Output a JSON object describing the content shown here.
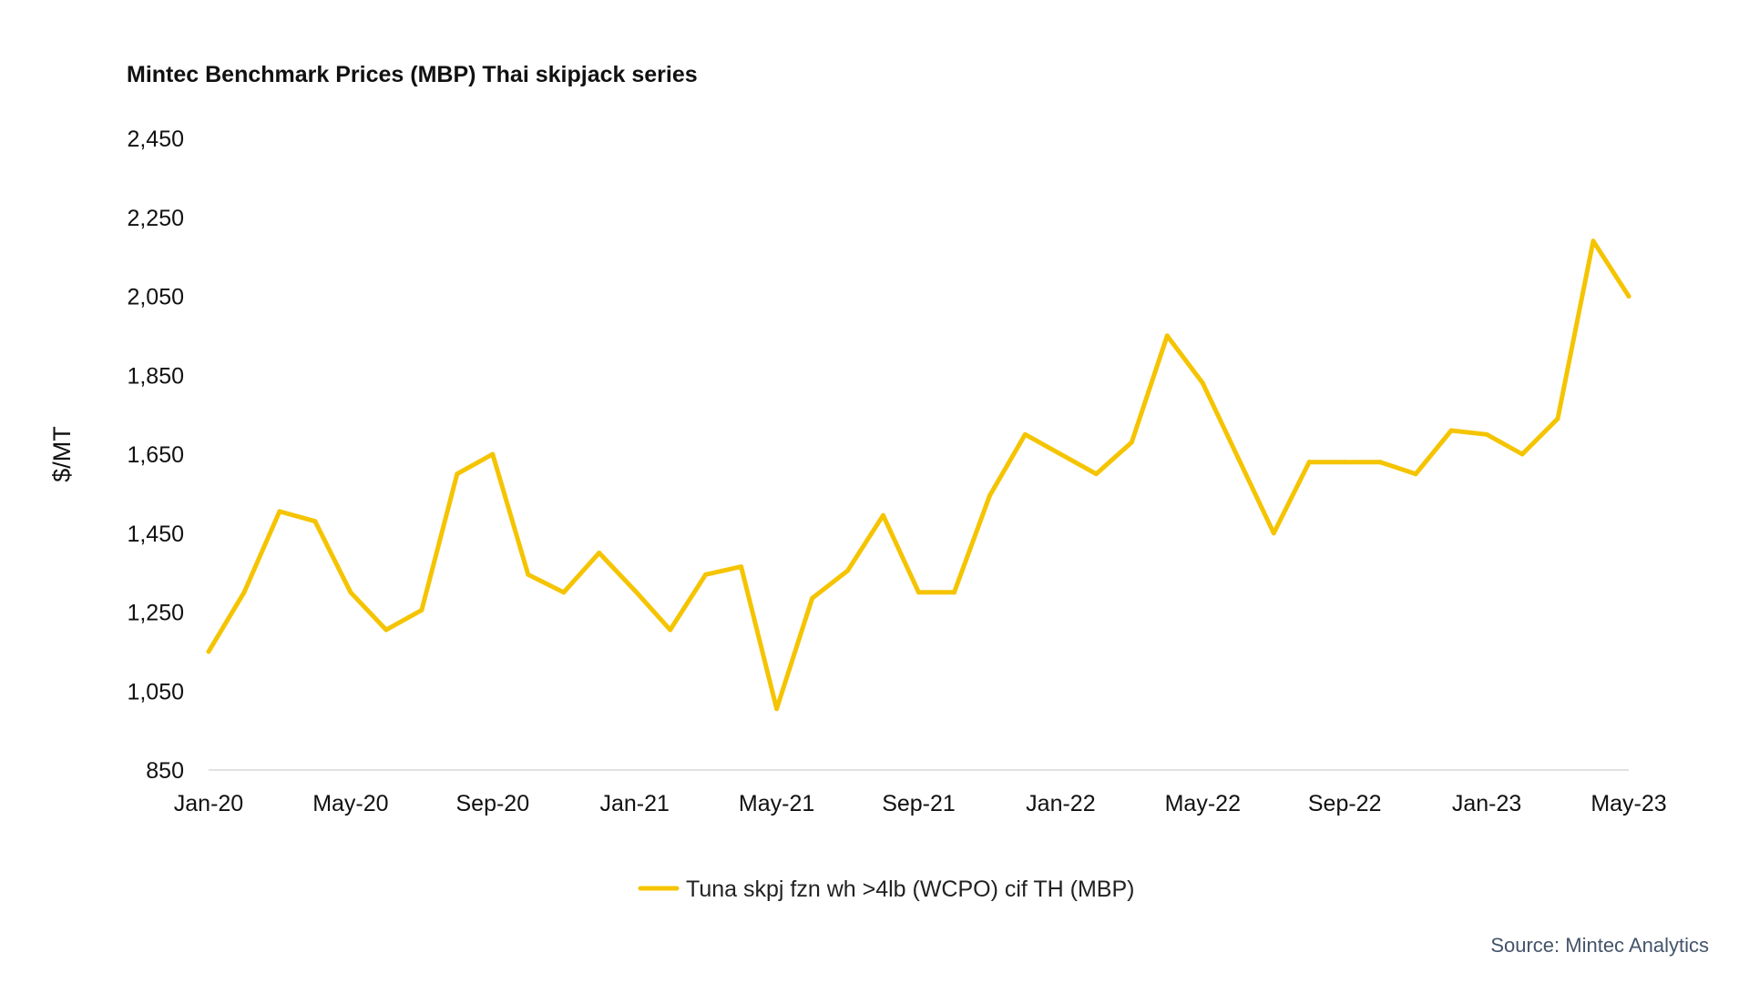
{
  "chart_data": {
    "type": "line",
    "title": "Mintec Benchmark Prices (MBP) Thai skipjack series",
    "ylabel": "$/MT",
    "xlabel": "",
    "ylim": [
      850,
      2450
    ],
    "yticks": [
      "2,450",
      "2,250",
      "2,050",
      "1,850",
      "1,650",
      "1,450",
      "1,250",
      "1,050",
      "850"
    ],
    "ytick_values": [
      2450,
      2250,
      2050,
      1850,
      1650,
      1450,
      1250,
      1050,
      850
    ],
    "x": [
      "Jan-20",
      "Feb-20",
      "Mar-20",
      "Apr-20",
      "May-20",
      "Jun-20",
      "Jul-20",
      "Aug-20",
      "Sep-20",
      "Oct-20",
      "Nov-20",
      "Dec-20",
      "Jan-21",
      "Feb-21",
      "Mar-21",
      "Apr-21",
      "May-21",
      "Jun-21",
      "Jul-21",
      "Aug-21",
      "Sep-21",
      "Oct-21",
      "Nov-21",
      "Dec-21",
      "Jan-22",
      "Feb-22",
      "Mar-22",
      "Apr-22",
      "May-22",
      "Jun-22",
      "Jul-22",
      "Aug-22",
      "Sep-22",
      "Oct-22",
      "Nov-22",
      "Dec-22",
      "Jan-23",
      "Feb-23",
      "Mar-23",
      "Apr-23",
      "May-23"
    ],
    "xtick_labels": [
      "Jan-20",
      "May-20",
      "Sep-20",
      "Jan-21",
      "May-21",
      "Sep-21",
      "Jan-22",
      "May-22",
      "Sep-22",
      "Jan-23",
      "May-23"
    ],
    "xtick_indices": [
      0,
      4,
      8,
      12,
      16,
      20,
      24,
      28,
      32,
      36,
      40
    ],
    "series": [
      {
        "name": "Tuna skpj fzn wh >4lb (WCPO) cif TH (MBP)",
        "color": "#f5c400",
        "values": [
          1150,
          1300,
          1505,
          1480,
          1300,
          1205,
          1255,
          1600,
          1650,
          1345,
          1300,
          1400,
          1305,
          1205,
          1345,
          1365,
          1005,
          1285,
          1355,
          1495,
          1300,
          1300,
          1545,
          1700,
          1650,
          1600,
          1680,
          1950,
          1830,
          1640,
          1450,
          1630,
          1630,
          1630,
          1600,
          1710,
          1700,
          1650,
          1740,
          2190,
          2050
        ]
      }
    ],
    "grid": false,
    "legend_position": "bottom"
  },
  "source": "Source: Mintec Analytics",
  "colors": {
    "line": "#f5c400",
    "axis": "#d9d9d9",
    "source": "#44546a"
  }
}
